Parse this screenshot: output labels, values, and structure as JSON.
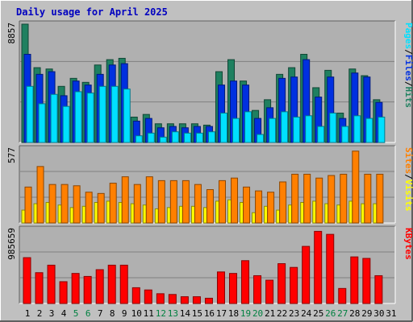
{
  "title": "Daily usage for April 2025",
  "colors": {
    "background": "#c0c0c0",
    "plot_bg": "#b0b0b0",
    "title": "#0000c0",
    "hits": "#1f8060",
    "files": "#0030e0",
    "pages": "#00e0ff",
    "visits": "#ffff00",
    "sites": "#ff8000",
    "kbytes": "#ff0000",
    "weekend_day": "#008040"
  },
  "chart_data": [
    {
      "type": "bar",
      "name": "hits-files-pages",
      "ytick_label": "8857",
      "legend": [
        "Pages",
        "/",
        "Files",
        "/",
        "Hits"
      ],
      "ylim": [
        0,
        8857
      ],
      "x": [
        1,
        2,
        3,
        4,
        5,
        6,
        7,
        8,
        9,
        10,
        11,
        12,
        13,
        14,
        15,
        16,
        17,
        18,
        19,
        20,
        21,
        22,
        23,
        24,
        25,
        26,
        27,
        28,
        29,
        30,
        31
      ],
      "series": [
        {
          "name": "Hits",
          "values": [
            8857,
            5600,
            5500,
            4200,
            4800,
            4500,
            5800,
            6200,
            6300,
            1900,
            2100,
            1400,
            1400,
            1400,
            1400,
            1300,
            5300,
            6200,
            4600,
            2400,
            3200,
            5100,
            5600,
            6600,
            4100,
            5400,
            2200,
            5500,
            5000,
            3200,
            0
          ]
        },
        {
          "name": "Files",
          "values": [
            6600,
            5100,
            5300,
            3500,
            4600,
            4300,
            5100,
            5800,
            5900,
            1600,
            1800,
            1100,
            1200,
            1100,
            1200,
            1200,
            4300,
            4600,
            4300,
            1800,
            2600,
            4800,
            4900,
            6200,
            3400,
            4900,
            1800,
            5200,
            4900,
            3000,
            0
          ]
        },
        {
          "name": "Pages",
          "values": [
            4200,
            2900,
            3600,
            2700,
            3800,
            3700,
            4200,
            4200,
            4000,
            500,
            700,
            400,
            800,
            700,
            700,
            800,
            2200,
            1800,
            2300,
            600,
            1800,
            2300,
            1900,
            2000,
            1200,
            2200,
            1200,
            2000,
            1800,
            1900,
            0
          ]
        }
      ]
    },
    {
      "type": "bar",
      "name": "visits-sites",
      "ytick_label": "577",
      "legend": [
        "Sites",
        "/",
        "Visits"
      ],
      "ylim": [
        0,
        577
      ],
      "x": [
        1,
        2,
        3,
        4,
        5,
        6,
        7,
        8,
        9,
        10,
        11,
        12,
        13,
        14,
        15,
        16,
        17,
        18,
        19,
        20,
        21,
        22,
        23,
        24,
        25,
        26,
        27,
        28,
        29,
        30,
        31
      ],
      "series": [
        {
          "name": "Visits",
          "values": [
            100,
            150,
            160,
            140,
            120,
            130,
            160,
            170,
            160,
            150,
            140,
            110,
            120,
            130,
            130,
            120,
            170,
            180,
            160,
            80,
            130,
            100,
            140,
            160,
            170,
            150,
            140,
            170,
            150,
            150,
            0
          ]
        },
        {
          "name": "Sites",
          "values": [
            280,
            440,
            300,
            300,
            290,
            240,
            230,
            310,
            360,
            300,
            360,
            330,
            330,
            330,
            300,
            260,
            330,
            350,
            280,
            250,
            240,
            320,
            380,
            380,
            350,
            370,
            380,
            560,
            380,
            380,
            0
          ]
        }
      ]
    },
    {
      "type": "bar",
      "name": "kbytes",
      "ytick_label": "985659",
      "legend": [
        "KBytes"
      ],
      "ylim": [
        0,
        985659
      ],
      "x": [
        1,
        2,
        3,
        4,
        5,
        6,
        7,
        8,
        9,
        10,
        11,
        12,
        13,
        14,
        15,
        16,
        17,
        18,
        19,
        20,
        21,
        22,
        23,
        24,
        25,
        26,
        27,
        28,
        29,
        30,
        31
      ],
      "series": [
        {
          "name": "KBytes",
          "values": [
            610000,
            410000,
            510000,
            290000,
            400000,
            360000,
            450000,
            510000,
            510000,
            210000,
            180000,
            130000,
            120000,
            90000,
            90000,
            70000,
            420000,
            400000,
            570000,
            370000,
            310000,
            530000,
            480000,
            760000,
            960000,
            920000,
            200000,
            620000,
            600000,
            370000,
            0
          ]
        }
      ]
    }
  ],
  "x_labels": [
    "1",
    "2",
    "3",
    "4",
    "5",
    "6",
    "7",
    "8",
    "9",
    "10",
    "11",
    "12",
    "13",
    "14",
    "15",
    "16",
    "17",
    "18",
    "19",
    "20",
    "21",
    "22",
    "23",
    "24",
    "25",
    "26",
    "27",
    "28",
    "29",
    "30",
    "31"
  ],
  "weekend_days": [
    5,
    6,
    12,
    13,
    19,
    20,
    26,
    27
  ]
}
